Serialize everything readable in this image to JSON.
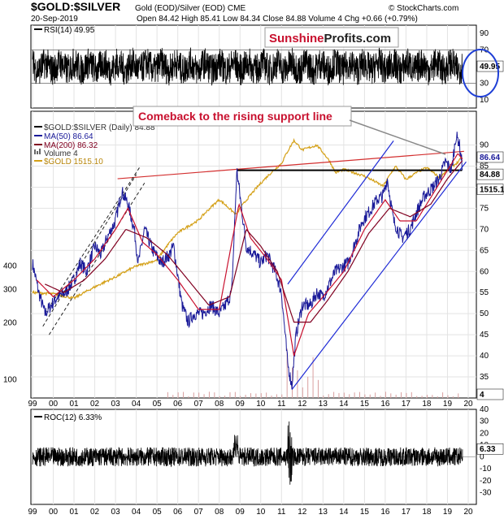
{
  "header": {
    "symbol": "$GOLD:$SILVER",
    "description": "Gold (EOD)/Silver (EOD) CME",
    "copyright": "© StockCharts.com",
    "date": "20-Sep-2019",
    "stats": "Open 84.42  High 85.41  Low 84.34  Close 84.88  Volume 4  Chg +0.66 (+0.79%)"
  },
  "watermark": {
    "part1": "Sunshine",
    "part2": "Profits.com"
  },
  "annotation": {
    "text": "Comeback to the rising support line"
  },
  "colors": {
    "price": "#1a1a99",
    "ma50": "#c8102e",
    "ma200": "#800020",
    "gold": "#d4a017",
    "trend_red": "#d32f2f",
    "channel_blue": "#1f2bd6",
    "watermark_red": "#c8102e",
    "circle": "#1f3fd6"
  },
  "chart_data": [
    {
      "panel": "rsi",
      "type": "line",
      "title": "RSI(14) 49.95",
      "ylim": [
        0,
        100
      ],
      "yticks": [
        10,
        30,
        50,
        70,
        90
      ],
      "reference_lines": [
        30,
        70
      ],
      "last_value": 49.95
    },
    {
      "panel": "price",
      "type": "line",
      "title": "$GOLD:$SILVER (Daily) 84.88",
      "ylim": [
        30,
        98
      ],
      "yticks": [
        35,
        40,
        45,
        50,
        55,
        60,
        65,
        70,
        75,
        80,
        85,
        90
      ],
      "gold_ticks": [
        100,
        200,
        300,
        400
      ],
      "x_ticks": [
        "99",
        "00",
        "01",
        "02",
        "03",
        "04",
        "05",
        "06",
        "07",
        "08",
        "09",
        "10",
        "11",
        "12",
        "13",
        "14",
        "15",
        "16",
        "17",
        "18",
        "19",
        "20"
      ],
      "x_range": [
        1999,
        2020
      ],
      "legend": [
        {
          "label": "$GOLD:$SILVER (Daily) 84.88",
          "key": "price"
        },
        {
          "label": "MA(50) 86.64",
          "key": "ma50"
        },
        {
          "label": "MA(200) 86.32",
          "key": "ma200"
        },
        {
          "label": "Volume 4",
          "key": "volume"
        },
        {
          "label": "$GOLD 1515.10",
          "key": "gold"
        }
      ],
      "value_badges": [
        {
          "text": "86.64",
          "key": "ma50"
        },
        {
          "text": "84.88",
          "key": "price"
        },
        {
          "text": "1515.1",
          "key": "gold"
        },
        {
          "text": "4",
          "key": "volume"
        }
      ],
      "series": [
        {
          "name": "$GOLD:$SILVER",
          "points": [
            [
              1999.0,
              62
            ],
            [
              1999.3,
              55
            ],
            [
              1999.6,
              50
            ],
            [
              1999.9,
              52
            ],
            [
              2000.2,
              54
            ],
            [
              2000.6,
              55
            ],
            [
              2001.0,
              58
            ],
            [
              2001.3,
              62
            ],
            [
              2001.6,
              60
            ],
            [
              2002.0,
              66
            ],
            [
              2002.3,
              64
            ],
            [
              2002.6,
              68
            ],
            [
              2003.0,
              72
            ],
            [
              2003.3,
              79
            ],
            [
              2003.6,
              76
            ],
            [
              2003.9,
              70
            ],
            [
              2004.1,
              62
            ],
            [
              2004.4,
              70
            ],
            [
              2004.8,
              65
            ],
            [
              2005.2,
              62
            ],
            [
              2005.6,
              64
            ],
            [
              2005.8,
              66
            ],
            [
              2006.2,
              52
            ],
            [
              2006.5,
              48
            ],
            [
              2006.8,
              50
            ],
            [
              2007.2,
              50
            ],
            [
              2007.6,
              52
            ],
            [
              2008.0,
              50
            ],
            [
              2008.3,
              52
            ],
            [
              2008.6,
              55
            ],
            [
              2008.85,
              84
            ],
            [
              2009.0,
              78
            ],
            [
              2009.3,
              66
            ],
            [
              2009.7,
              64
            ],
            [
              2010.0,
              62
            ],
            [
              2010.3,
              64
            ],
            [
              2010.7,
              60
            ],
            [
              2011.0,
              55
            ],
            [
              2011.3,
              38
            ],
            [
              2011.5,
              33
            ],
            [
              2011.7,
              45
            ],
            [
              2012.0,
              52
            ],
            [
              2012.4,
              52
            ],
            [
              2012.7,
              55
            ],
            [
              2013.0,
              54
            ],
            [
              2013.3,
              57
            ],
            [
              2013.6,
              60
            ],
            [
              2013.9,
              61
            ],
            [
              2014.2,
              62
            ],
            [
              2014.5,
              66
            ],
            [
              2014.9,
              72
            ],
            [
              2015.2,
              74
            ],
            [
              2015.6,
              77
            ],
            [
              2015.9,
              78
            ],
            [
              2016.1,
              82
            ],
            [
              2016.4,
              72
            ],
            [
              2016.8,
              68
            ],
            [
              2017.2,
              70
            ],
            [
              2017.5,
              74
            ],
            [
              2017.9,
              78
            ],
            [
              2018.3,
              80
            ],
            [
              2018.6,
              82
            ],
            [
              2018.9,
              86
            ],
            [
              2019.2,
              84
            ],
            [
              2019.4,
              92
            ],
            [
              2019.55,
              91
            ],
            [
              2019.72,
              84.88
            ]
          ]
        },
        {
          "name": "MA(50)",
          "points": [
            [
              1999.2,
              58
            ],
            [
              2000.0,
              54
            ],
            [
              2001.0,
              58
            ],
            [
              2002.0,
              63
            ],
            [
              2003.0,
              70
            ],
            [
              2003.6,
              75
            ],
            [
              2004.3,
              67
            ],
            [
              2005.0,
              64
            ],
            [
              2006.0,
              58
            ],
            [
              2007.0,
              51
            ],
            [
              2008.0,
              51
            ],
            [
              2008.95,
              76
            ],
            [
              2009.5,
              68
            ],
            [
              2010.3,
              63
            ],
            [
              2011.0,
              58
            ],
            [
              2011.6,
              40
            ],
            [
              2012.3,
              50
            ],
            [
              2013.0,
              54
            ],
            [
              2014.0,
              60
            ],
            [
              2015.0,
              70
            ],
            [
              2016.0,
              77
            ],
            [
              2016.7,
              72
            ],
            [
              2017.5,
              72
            ],
            [
              2018.5,
              80
            ],
            [
              2019.0,
              84
            ],
            [
              2019.5,
              88
            ],
            [
              2019.72,
              86.64
            ]
          ]
        },
        {
          "name": "MA(200)",
          "points": [
            [
              1999.6,
              57
            ],
            [
              2000.5,
              55
            ],
            [
              2001.5,
              58
            ],
            [
              2002.5,
              63
            ],
            [
              2003.5,
              70
            ],
            [
              2004.5,
              68
            ],
            [
              2005.5,
              64
            ],
            [
              2006.5,
              58
            ],
            [
              2007.5,
              52
            ],
            [
              2008.5,
              54
            ],
            [
              2009.3,
              70
            ],
            [
              2010.0,
              66
            ],
            [
              2010.8,
              60
            ],
            [
              2011.6,
              48
            ],
            [
              2012.4,
              48
            ],
            [
              2013.2,
              53
            ],
            [
              2014.2,
              60
            ],
            [
              2015.2,
              69
            ],
            [
              2016.2,
              75
            ],
            [
              2017.2,
              73
            ],
            [
              2018.2,
              76
            ],
            [
              2019.0,
              82
            ],
            [
              2019.72,
              86.32
            ]
          ]
        },
        {
          "name": "$GOLD",
          "points": [
            [
              1999.0,
              290
            ],
            [
              2000.0,
              285
            ],
            [
              2001.0,
              270
            ],
            [
              2002.0,
              310
            ],
            [
              2003.0,
              350
            ],
            [
              2004.0,
              400
            ],
            [
              2005.0,
              430
            ],
            [
              2006.0,
              600
            ],
            [
              2007.0,
              700
            ],
            [
              2008.0,
              900
            ],
            [
              2008.8,
              750
            ],
            [
              2009.5,
              950
            ],
            [
              2010.0,
              1100
            ],
            [
              2010.5,
              1250
            ],
            [
              2011.0,
              1400
            ],
            [
              2011.6,
              1850
            ],
            [
              2012.0,
              1650
            ],
            [
              2012.7,
              1750
            ],
            [
              2013.3,
              1450
            ],
            [
              2013.6,
              1250
            ],
            [
              2014.0,
              1300
            ],
            [
              2015.0,
              1200
            ],
            [
              2015.9,
              1060
            ],
            [
              2016.5,
              1350
            ],
            [
              2017.0,
              1150
            ],
            [
              2017.5,
              1250
            ],
            [
              2018.0,
              1330
            ],
            [
              2018.6,
              1180
            ],
            [
              2019.0,
              1290
            ],
            [
              2019.5,
              1420
            ],
            [
              2019.72,
              1515.1
            ]
          ]
        }
      ],
      "lines": [
        {
          "name": "long-term red resistance",
          "from": [
            2003.1,
            82
          ],
          "to": [
            2019.8,
            88.5
          ]
        },
        {
          "name": "black horizontal resistance",
          "from": [
            2008.85,
            84
          ],
          "to": [
            2019.7,
            84
          ]
        },
        {
          "name": "rising support line",
          "from": [
            2011.5,
            32
          ],
          "to": [
            2019.9,
            86
          ]
        },
        {
          "name": "upper channel line",
          "from": [
            2011.3,
            57
          ],
          "to": [
            2016.4,
            91
          ]
        }
      ]
    },
    {
      "panel": "roc",
      "type": "line",
      "title": "ROC(12) 6.33%",
      "ylim": [
        -40,
        40
      ],
      "yticks": [
        -30,
        -20,
        -10,
        0,
        10,
        20,
        30,
        40
      ],
      "last_value": 6.33,
      "value_badge": "6.33",
      "x_ticks": [
        "99",
        "00",
        "01",
        "02",
        "03",
        "04",
        "05",
        "06",
        "07",
        "08",
        "09",
        "10",
        "11",
        "12",
        "13",
        "14",
        "15",
        "16",
        "17",
        "18",
        "19",
        "20"
      ]
    }
  ]
}
